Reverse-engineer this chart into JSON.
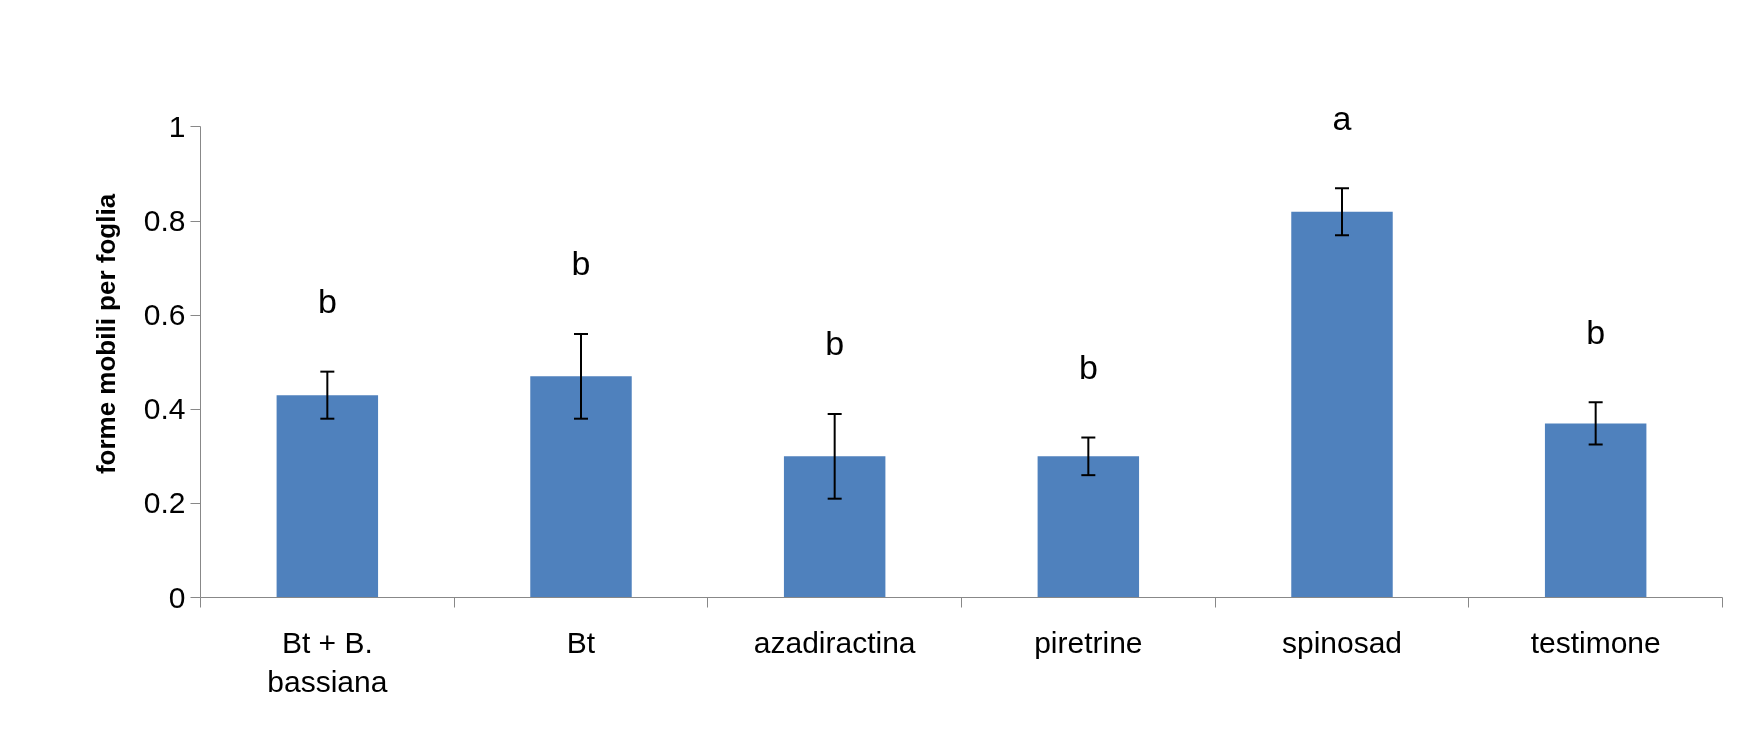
{
  "chart_data": {
    "type": "bar",
    "ylabel": "forme mobili per foglia",
    "categories": [
      "Bt + B. bassiana",
      "Bt",
      "azadiractina",
      "piretrine",
      "spinosad",
      "testimone"
    ],
    "values": [
      0.43,
      0.47,
      0.3,
      0.3,
      0.82,
      0.37
    ],
    "errors": [
      0.05,
      0.09,
      0.09,
      0.04,
      0.05,
      0.045
    ],
    "color": "#4f81bd",
    "ylim": [
      0,
      1
    ],
    "yticks": [
      0,
      0.2,
      0.4,
      0.6,
      0.8,
      1
    ],
    "grid": false,
    "annotations": [
      "b",
      "b",
      "b",
      "b",
      "a",
      "b"
    ]
  }
}
